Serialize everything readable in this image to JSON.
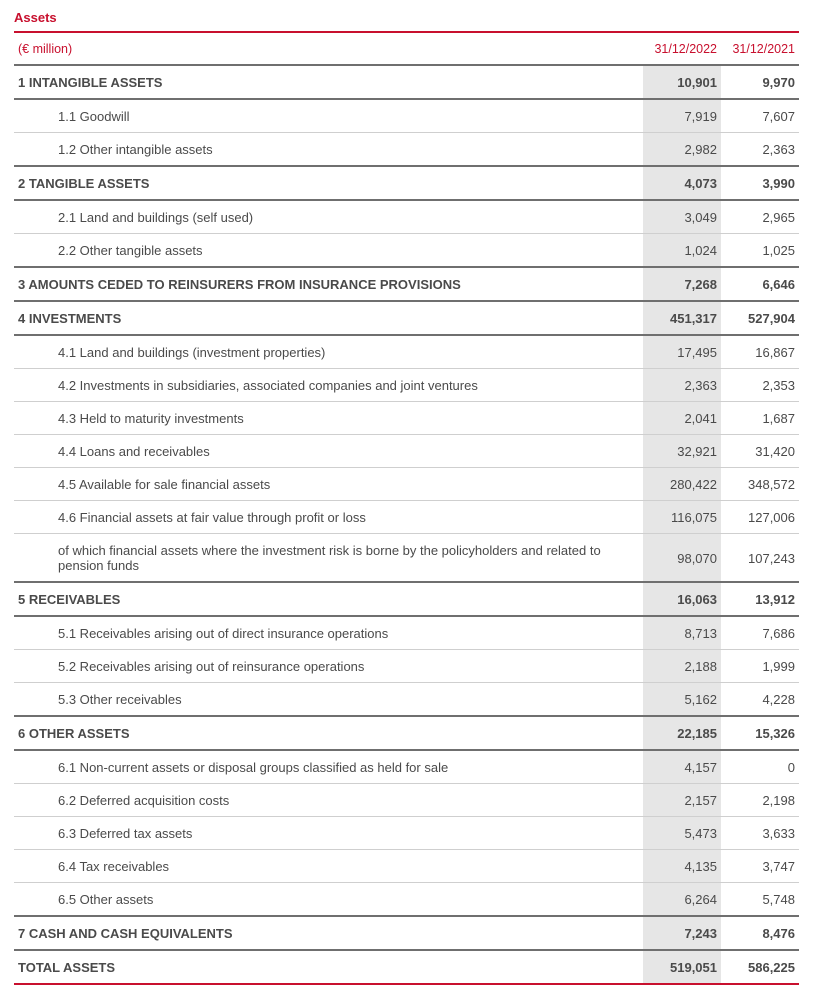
{
  "colors": {
    "accent": "#c8102e",
    "title": "#c8102e",
    "header_text": "#c8102e",
    "header_topline": "#c8102e",
    "header_bottomline": "#6f6f6f",
    "total_bottomline": "#c8102e"
  },
  "title": "Assets",
  "header": {
    "label": "(€ million)",
    "col1": "31/12/2022",
    "col2": "31/12/2021"
  },
  "rows": [
    {
      "type": "main",
      "label": "1 INTANGIBLE ASSETS",
      "v1": "10,901",
      "v2": "9,970"
    },
    {
      "type": "sub",
      "label": "1.1 Goodwill",
      "v1": "7,919",
      "v2": "7,607"
    },
    {
      "type": "sub",
      "label": "1.2 Other intangible assets",
      "v1": "2,982",
      "v2": "2,363"
    },
    {
      "type": "main",
      "label": "2 TANGIBLE ASSETS",
      "v1": "4,073",
      "v2": "3,990",
      "sep_before": true
    },
    {
      "type": "sub",
      "label": "2.1 Land and buildings (self used)",
      "v1": "3,049",
      "v2": "2,965"
    },
    {
      "type": "sub",
      "label": "2.2 Other tangible assets",
      "v1": "1,024",
      "v2": "1,025"
    },
    {
      "type": "main",
      "label": "3 AMOUNTS CEDED TO REINSURERS FROM INSURANCE PROVISIONS",
      "v1": "7,268",
      "v2": "6,646",
      "sep_before": true
    },
    {
      "type": "main",
      "label": "4 INVESTMENTS",
      "v1": "451,317",
      "v2": "527,904"
    },
    {
      "type": "sub",
      "label": "4.1 Land and buildings (investment properties)",
      "v1": "17,495",
      "v2": "16,867"
    },
    {
      "type": "sub",
      "label": "4.2 Investments in subsidiaries, associated companies and joint ventures",
      "v1": "2,363",
      "v2": "2,353"
    },
    {
      "type": "sub",
      "label": "4.3 Held to maturity investments",
      "v1": "2,041",
      "v2": "1,687"
    },
    {
      "type": "sub",
      "label": "4.4 Loans and receivables",
      "v1": "32,921",
      "v2": "31,420"
    },
    {
      "type": "sub",
      "label": "4.5 Available for sale financial assets",
      "v1": "280,422",
      "v2": "348,572"
    },
    {
      "type": "sub",
      "label": "4.6 Financial assets at fair value through profit or loss",
      "v1": "116,075",
      "v2": "127,006"
    },
    {
      "type": "sub",
      "label": "of which financial assets where the investment risk is borne by the policyholders and related to pension funds",
      "v1": "98,070",
      "v2": "107,243"
    },
    {
      "type": "main",
      "label": "5 RECEIVABLES",
      "v1": "16,063",
      "v2": "13,912",
      "sep_before": true
    },
    {
      "type": "sub",
      "label": "5.1 Receivables arising out of direct insurance operations",
      "v1": "8,713",
      "v2": "7,686"
    },
    {
      "type": "sub",
      "label": "5.2 Receivables arising out of reinsurance operations",
      "v1": "2,188",
      "v2": "1,999"
    },
    {
      "type": "sub",
      "label": "5.3 Other receivables",
      "v1": "5,162",
      "v2": "4,228"
    },
    {
      "type": "main",
      "label": "6 OTHER ASSETS",
      "v1": "22,185",
      "v2": "15,326",
      "sep_before": true
    },
    {
      "type": "sub",
      "label": "6.1 Non-current assets or disposal groups classified as held for sale",
      "v1": "4,157",
      "v2": "0"
    },
    {
      "type": "sub",
      "label": "6.2 Deferred acquisition costs",
      "v1": "2,157",
      "v2": "2,198"
    },
    {
      "type": "sub",
      "label": "6.3 Deferred tax assets",
      "v1": "5,473",
      "v2": "3,633"
    },
    {
      "type": "sub",
      "label": "6.4 Tax receivables",
      "v1": "4,135",
      "v2": "3,747"
    },
    {
      "type": "sub",
      "label": "6.5 Other assets",
      "v1": "6,264",
      "v2": "5,748"
    },
    {
      "type": "main",
      "label": "7 CASH AND CASH EQUIVALENTS",
      "v1": "7,243",
      "v2": "8,476",
      "sep_before": true
    },
    {
      "type": "total",
      "label": "TOTAL ASSETS",
      "v1": "519,051",
      "v2": "586,225"
    }
  ]
}
